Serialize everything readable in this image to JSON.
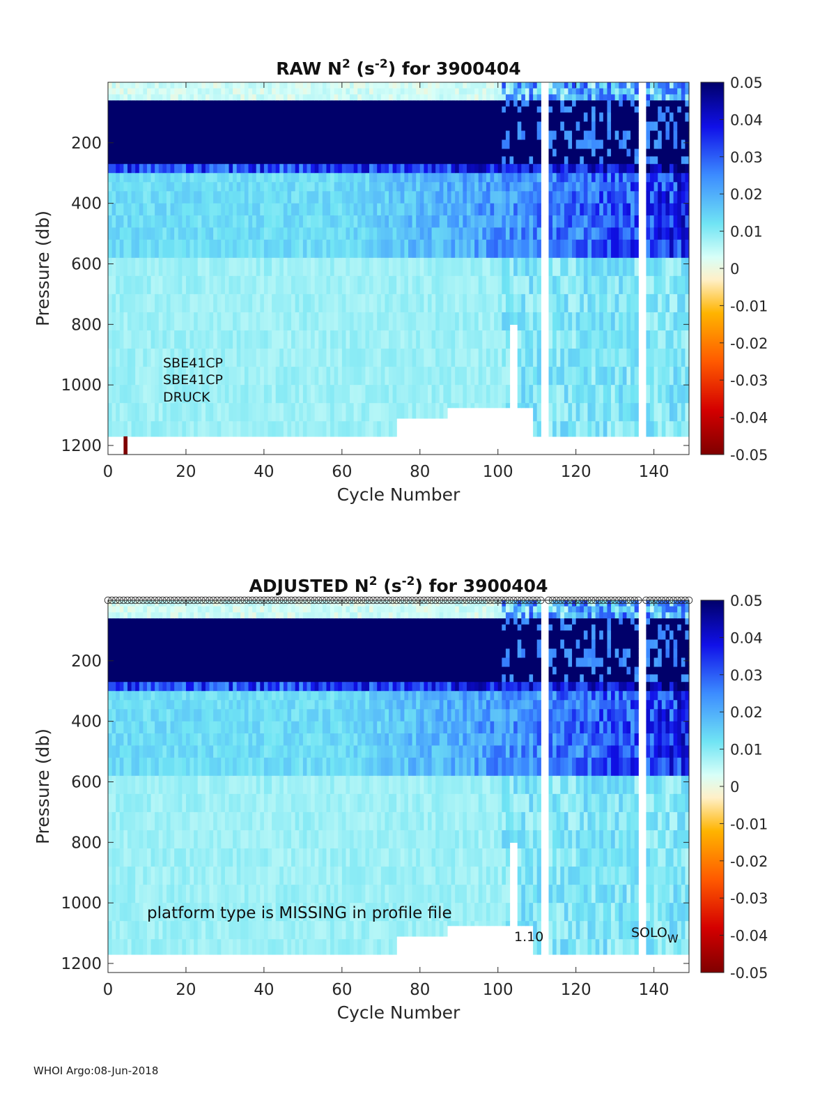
{
  "chart_data": [
    {
      "type": "heatmap",
      "title": "RAW N² (s⁻²) for 3900404",
      "title_parts": {
        "prefix": "RAW N",
        "sup1": "2",
        "mid": " (s",
        "sup2": "-2",
        "suffix": ") for 3900404"
      },
      "xlabel": "Cycle Number",
      "ylabel": "Pressure (db)",
      "xlim": [
        0,
        149
      ],
      "ylim": [
        1230,
        0
      ],
      "xticks": [
        "0",
        "20",
        "40",
        "60",
        "80",
        "100",
        "120",
        "140"
      ],
      "yticks": [
        "200",
        "400",
        "600",
        "800",
        "1000",
        "1200"
      ],
      "colorbar": {
        "range": [
          -0.05,
          0.05
        ],
        "ticks": [
          "0.05",
          "0.04",
          "0.03",
          "0.02",
          "0.01",
          "0",
          "-0.01",
          "-0.02",
          "-0.03",
          "-0.04",
          "-0.05"
        ]
      },
      "annotations": [
        "SBE41CP",
        "SBE41CP",
        "DRUCK"
      ],
      "layers_description": [
        {
          "p_top": 0,
          "p_bottom": 60,
          "value": 0.003
        },
        {
          "p_top": 60,
          "p_bottom": 260,
          "value": 0.05
        },
        {
          "p_top": 260,
          "p_bottom": 300,
          "value": 0.03
        },
        {
          "p_top": 300,
          "p_bottom": 580,
          "value": 0.012
        },
        {
          "p_top": 580,
          "p_bottom": 1170,
          "value": 0.008
        }
      ],
      "missing_cycles": [
        111,
        112,
        136,
        137
      ],
      "special_values": [
        {
          "cycle": 4,
          "p_top": 1170,
          "p_bottom": 1230,
          "value": -0.05
        }
      ]
    },
    {
      "type": "heatmap",
      "title": "ADJUSTED N² (s⁻²) for 3900404",
      "title_parts": {
        "prefix": "ADJUSTED N",
        "sup1": "2",
        "mid": " (s",
        "sup2": "-2",
        "suffix": ") for 3900404"
      },
      "xlabel": "Cycle Number",
      "ylabel": "Pressure (db)",
      "xlim": [
        0,
        149
      ],
      "ylim": [
        1230,
        0
      ],
      "xticks": [
        "0",
        "20",
        "40",
        "60",
        "80",
        "100",
        "120",
        "140"
      ],
      "yticks": [
        "200",
        "400",
        "600",
        "800",
        "1000",
        "1200"
      ],
      "colorbar": {
        "range": [
          -0.05,
          0.05
        ],
        "ticks": [
          "0.05",
          "0.04",
          "0.03",
          "0.02",
          "0.01",
          "0",
          "-0.01",
          "-0.02",
          "-0.03",
          "-0.04",
          "-0.05"
        ]
      },
      "annotations": {
        "platform_note": "platform type is MISSING in profile file",
        "version": "1.10",
        "float_type": "SOLO",
        "float_type_sub": "W"
      },
      "qc_markers": "open circles along top axis for each cycle",
      "missing_cycles": [
        111,
        112,
        136,
        137
      ]
    }
  ],
  "footer": "WHOI Argo:08-Jun-2018"
}
